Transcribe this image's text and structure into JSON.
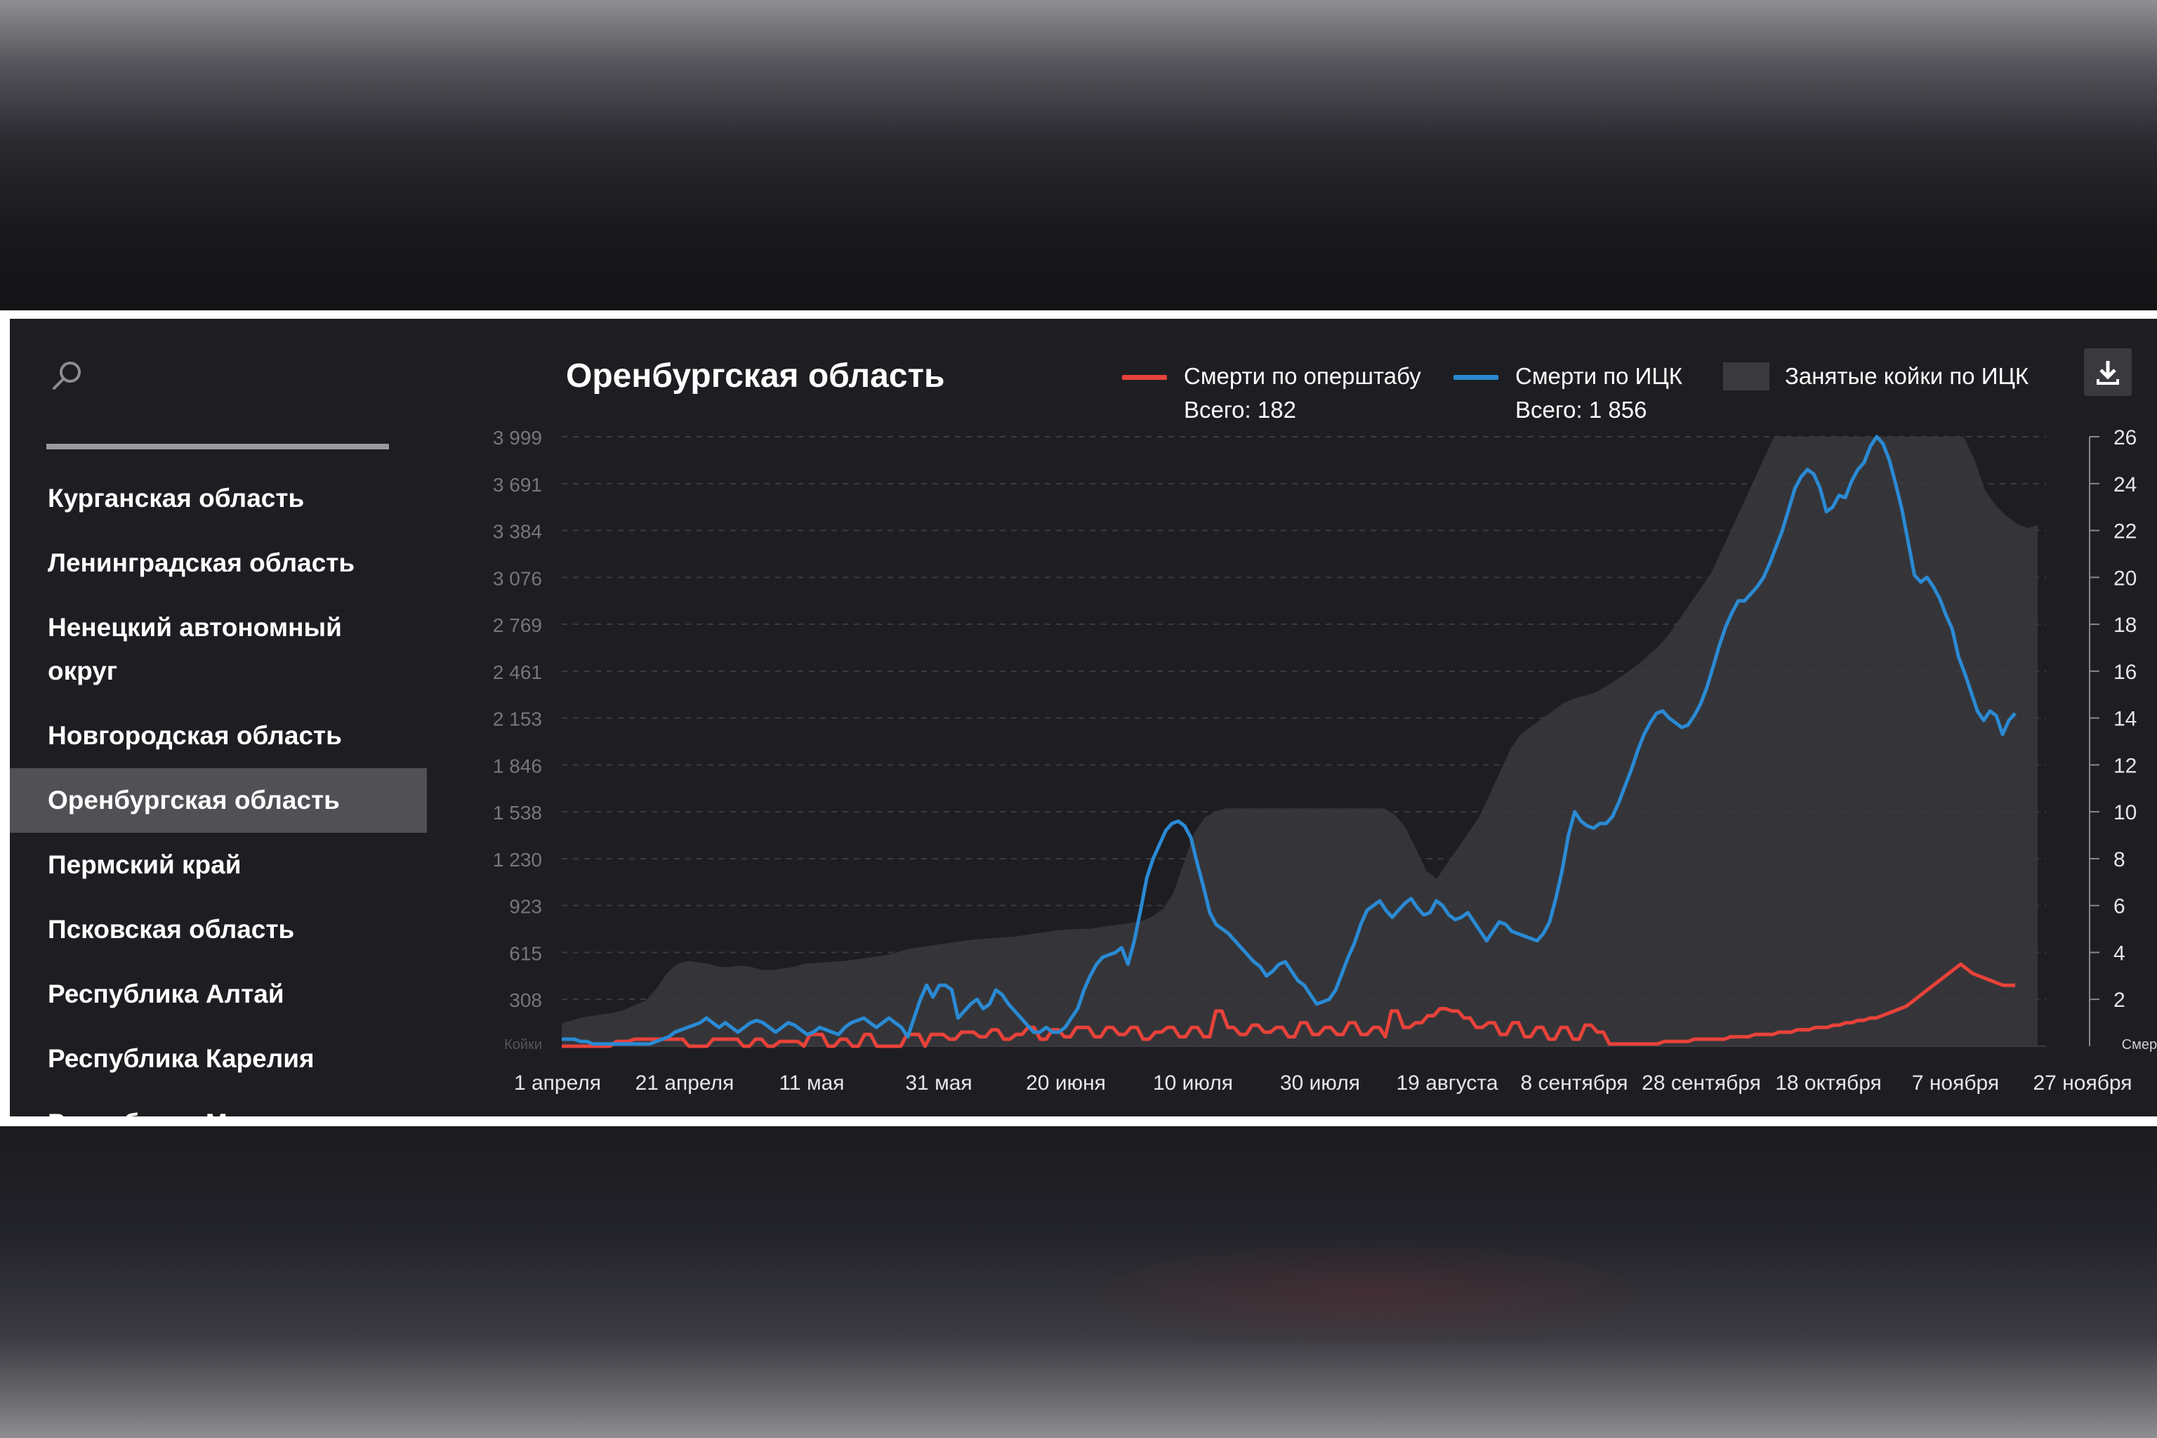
{
  "sidebar": {
    "search_icon": "search-icon",
    "items": [
      {
        "label": "Курганская область",
        "active": false
      },
      {
        "label": "Ленинградская область",
        "active": false
      },
      {
        "label": "Ненецкий автономный округ",
        "active": false
      },
      {
        "label": "Новгородская область",
        "active": false
      },
      {
        "label": "Оренбургская область",
        "active": true
      },
      {
        "label": "Пермский край",
        "active": false
      },
      {
        "label": "Псковская область",
        "active": false
      },
      {
        "label": "Республика Алтай",
        "active": false
      },
      {
        "label": "Республика Карелия",
        "active": false
      },
      {
        "label": "Республика Мордовия",
        "active": false
      }
    ]
  },
  "download_icon": "download-icon",
  "colors": {
    "opershtab": "#e8423a",
    "ick": "#2a8ad4",
    "beds": "#3a3a3d",
    "panel": "#1e1e22"
  },
  "chart_data": {
    "type": "line",
    "title": "Оренбургская область",
    "left_axis": {
      "label": "Койки",
      "ticks": [
        "3 999",
        "3 691",
        "3 384",
        "3 076",
        "2 769",
        "2 461",
        "2 153",
        "1 846",
        "1 538",
        "1 230",
        "923",
        "615",
        "308"
      ],
      "min": 0,
      "max": 3999
    },
    "right_axis": {
      "label": "Смерти",
      "ticks": [
        "26",
        "24",
        "22",
        "20",
        "18",
        "16",
        "14",
        "12",
        "10",
        "8",
        "6",
        "4",
        "2"
      ],
      "min": 0,
      "max": 26
    },
    "x_ticks": [
      "1 апреля",
      "21 апреля",
      "11 мая",
      "31 мая",
      "20 июня",
      "10 июля",
      "30 июля",
      "19 августа",
      "8 сентября",
      "28 сентября",
      "18 октября",
      "7 ноября",
      "27 ноября"
    ],
    "grid": true,
    "series": [
      {
        "name": "Смерти по оперштабу",
        "total_label": "Всего: 182",
        "axis": "right",
        "values": [
          0,
          0,
          0,
          0,
          0,
          0,
          0,
          0,
          0,
          0.2,
          0.2,
          0.2,
          0.3,
          0.3,
          0.3,
          0.3,
          0.3,
          0.3,
          0.3,
          0.3,
          0.3,
          0,
          0,
          0,
          0,
          0.3,
          0.3,
          0.3,
          0.3,
          0.3,
          0,
          0,
          0.3,
          0.3,
          0,
          0,
          0.2,
          0.2,
          0.2,
          0.2,
          0,
          0.5,
          0.5,
          0.5,
          0,
          0,
          0.3,
          0.3,
          0,
          0,
          0.5,
          0.5,
          0,
          0,
          0,
          0,
          0,
          0.5,
          0.5,
          0.5,
          0,
          0.5,
          0.5,
          0.5,
          0.3,
          0.3,
          0.6,
          0.6,
          0.6,
          0.4,
          0.4,
          0.7,
          0.7,
          0.3,
          0.3,
          0.5,
          0.5,
          0.8,
          0.8,
          0.3,
          0.3,
          0.7,
          0.7,
          0.4,
          0.4,
          0.8,
          0.8,
          0.8,
          0.4,
          0.4,
          0.8,
          0.8,
          0.5,
          0.5,
          0.8,
          0.8,
          0.3,
          0.3,
          0.6,
          0.6,
          0.8,
          0.8,
          0.4,
          0.4,
          0.8,
          0.8,
          0.4,
          0.4,
          1.5,
          1.5,
          0.8,
          0.8,
          0.5,
          0.5,
          0.9,
          0.9,
          0.6,
          0.6,
          0.8,
          0.8,
          0.4,
          0.4,
          1,
          1,
          0.5,
          0.5,
          0.8,
          0.8,
          0.5,
          0.5,
          1,
          1,
          0.5,
          0.5,
          0.8,
          0.8,
          0.4,
          1.5,
          1.5,
          0.8,
          0.8,
          1,
          1,
          1.3,
          1.3,
          1.6,
          1.6,
          1.5,
          1.5,
          1.2,
          1.2,
          0.8,
          0.8,
          1,
          1,
          0.5,
          0.5,
          1,
          1,
          0.4,
          0.4,
          0.8,
          0.8,
          0.3,
          0.3,
          0.8,
          0.8,
          0.3,
          0.3,
          0.9,
          0.9,
          0.6,
          0.6,
          0.1,
          0.1,
          0.1,
          0.1,
          0.1,
          0.1,
          0.1,
          0.1,
          0.1,
          0.2,
          0.2,
          0.2,
          0.2,
          0.2,
          0.3,
          0.3,
          0.3,
          0.3,
          0.3,
          0.3,
          0.4,
          0.4,
          0.4,
          0.4,
          0.5,
          0.5,
          0.5,
          0.5,
          0.6,
          0.6,
          0.6,
          0.7,
          0.7,
          0.7,
          0.8,
          0.8,
          0.8,
          0.9,
          0.9,
          1,
          1,
          1.1,
          1.1,
          1.2,
          1.2,
          1.3,
          1.4,
          1.5,
          1.6,
          1.7,
          1.9,
          2.1,
          2.3,
          2.5,
          2.7,
          2.9,
          3.1,
          3.3,
          3.5,
          3.3,
          3.1,
          3,
          2.9,
          2.8,
          2.7,
          2.6,
          2.6,
          2.6
        ]
      },
      {
        "name": "Смерти по ИЦК",
        "total_label": "Всего: 1 856",
        "axis": "right",
        "values": [
          0.3,
          0.3,
          0.3,
          0.2,
          0.2,
          0.1,
          0.1,
          0.1,
          0.1,
          0.1,
          0.1,
          0.1,
          0.1,
          0.1,
          0.1,
          0.2,
          0.3,
          0.4,
          0.6,
          0.7,
          0.8,
          0.9,
          1,
          1.2,
          1,
          0.8,
          1,
          0.8,
          0.6,
          0.8,
          1,
          1.1,
          1,
          0.8,
          0.6,
          0.8,
          1,
          0.9,
          0.7,
          0.5,
          0.6,
          0.8,
          0.7,
          0.6,
          0.5,
          0.8,
          1,
          1.1,
          1.2,
          1,
          0.8,
          1,
          1.2,
          1,
          0.8,
          0.4,
          1.2,
          2,
          2.6,
          2.1,
          2.6,
          2.6,
          2.4,
          1.2,
          1.5,
          1.8,
          2,
          1.6,
          1.8,
          2.4,
          2.2,
          1.8,
          1.5,
          1.2,
          0.9,
          0.6,
          0.6,
          0.8,
          0.6,
          0.6,
          0.8,
          1.2,
          1.6,
          2.4,
          3,
          3.5,
          3.8,
          3.9,
          4,
          4.2,
          3.5,
          4.5,
          5.8,
          7.2,
          8,
          8.6,
          9.2,
          9.5,
          9.6,
          9.4,
          8.9,
          7.8,
          6.8,
          5.7,
          5.2,
          5,
          4.8,
          4.5,
          4.2,
          3.9,
          3.6,
          3.4,
          3,
          3.2,
          3.5,
          3.6,
          3.2,
          2.8,
          2.6,
          2.2,
          1.8,
          1.9,
          2,
          2.4,
          3.1,
          3.8,
          4.4,
          5.2,
          5.8,
          6,
          6.2,
          5.8,
          5.5,
          5.8,
          6.1,
          6.3,
          5.9,
          5.6,
          5.7,
          6.2,
          6,
          5.6,
          5.4,
          5.5,
          5.7,
          5.3,
          4.9,
          4.5,
          4.9,
          5.3,
          5.2,
          4.9,
          4.8,
          4.7,
          4.6,
          4.5,
          4.8,
          5.3,
          6.3,
          7.5,
          9,
          10,
          9.6,
          9.4,
          9.3,
          9.5,
          9.5,
          9.8,
          10.4,
          11.1,
          11.8,
          12.6,
          13.3,
          13.8,
          14.2,
          14.3,
          14,
          13.8,
          13.6,
          13.7,
          14.1,
          14.6,
          15.3,
          16.2,
          17.1,
          17.9,
          18.5,
          19,
          19,
          19.3,
          19.6,
          20,
          20.6,
          21.3,
          22,
          22.9,
          23.8,
          24.3,
          24.6,
          24.4,
          23.8,
          22.8,
          23,
          23.5,
          23.4,
          24.1,
          24.6,
          24.9,
          25.6,
          26,
          25.7,
          25,
          24,
          22.9,
          21.5,
          20.1,
          19.8,
          20,
          19.6,
          19.1,
          18.4,
          17.8,
          16.6,
          15.9,
          15.1,
          14.3,
          13.9,
          14.3,
          14.1,
          13.3,
          13.9,
          14.2
        ]
      },
      {
        "name": "Занятые койки по ИЦК",
        "axis": "left",
        "type": "area",
        "values": [
          150,
          170,
          190,
          200,
          210,
          220,
          240,
          270,
          300,
          380,
          480,
          540,
          560,
          550,
          540,
          520,
          520,
          530,
          520,
          500,
          500,
          510,
          520,
          540,
          545,
          550,
          555,
          560,
          570,
          580,
          590,
          600,
          620,
          640,
          650,
          660,
          670,
          680,
          690,
          700,
          705,
          710,
          715,
          720,
          730,
          740,
          750,
          760,
          765,
          770,
          770,
          780,
          790,
          800,
          810,
          820,
          850,
          900,
          1000,
          1200,
          1400,
          1500,
          1540,
          1560,
          1560,
          1560,
          1560,
          1560,
          1560,
          1560,
          1560,
          1560,
          1560,
          1560,
          1560,
          1560,
          1560,
          1560,
          1560,
          1520,
          1440,
          1300,
          1150,
          1100,
          1200,
          1300,
          1400,
          1500,
          1650,
          1800,
          1950,
          2050,
          2100,
          2150,
          2200,
          2250,
          2280,
          2300,
          2320,
          2360,
          2400,
          2450,
          2500,
          2560,
          2620,
          2700,
          2800,
          2900,
          3000,
          3100,
          3250,
          3400,
          3550,
          3700,
          3850,
          3999,
          3999,
          3999,
          3999,
          3999,
          3999,
          3999,
          3999,
          3999,
          3999,
          3999,
          3999,
          3999,
          3999,
          3999,
          3999,
          3999,
          3999,
          3999,
          3850,
          3650,
          3550,
          3480,
          3430,
          3400,
          3420
        ]
      }
    ]
  }
}
